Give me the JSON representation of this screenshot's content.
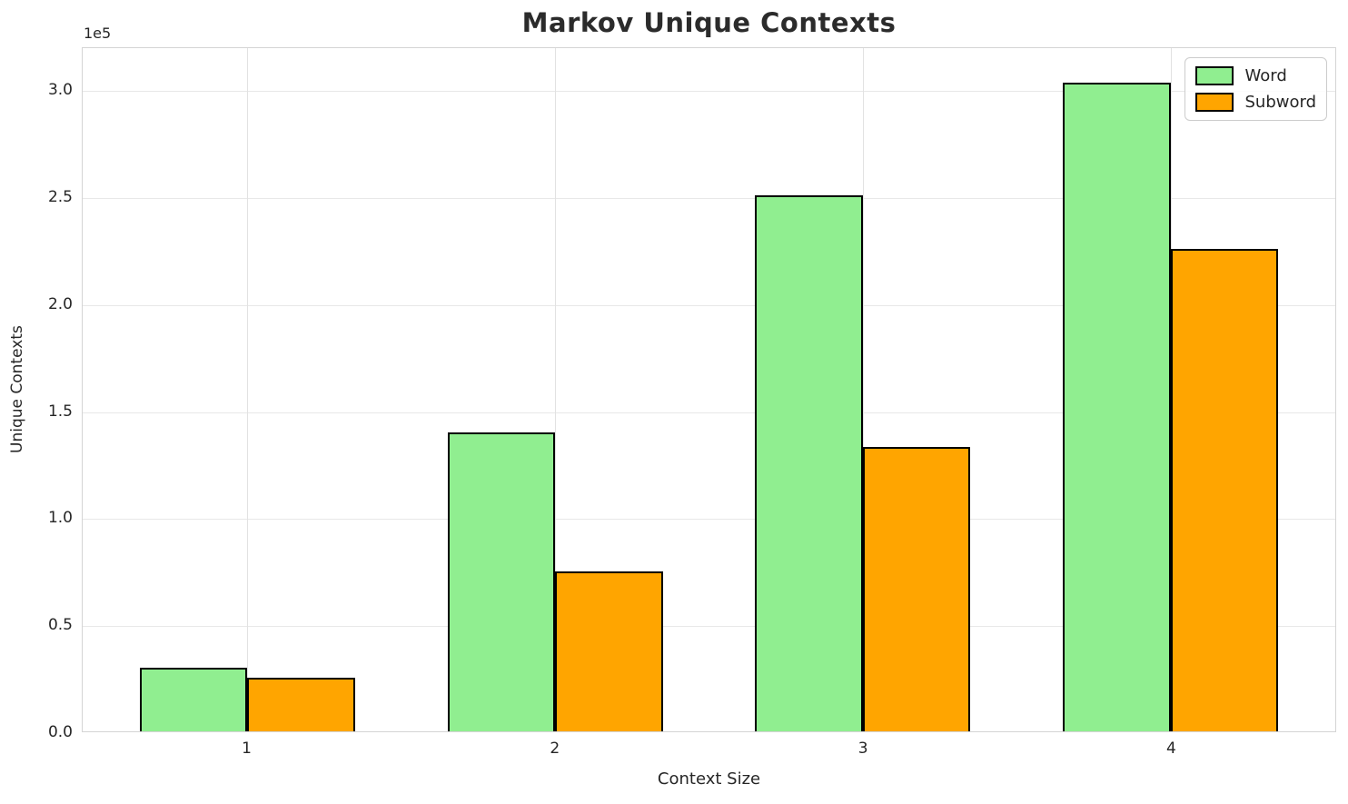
{
  "title": "Markov Unique Contexts",
  "axis_offset_label": "1e5",
  "chart_data": {
    "type": "bar",
    "title": "Markov Unique Contexts",
    "xlabel": "Context Size",
    "ylabel": "Unique Contexts",
    "categories": [
      "1",
      "2",
      "3",
      "4"
    ],
    "series": [
      {
        "name": "Word",
        "color": "#90EE90",
        "values": [
          30000,
          140000,
          251000,
          304000
        ]
      },
      {
        "name": "Subword",
        "color": "#FFA500",
        "values": [
          25000,
          75000,
          133000,
          226000
        ]
      }
    ],
    "bar_edge_color": "#000000",
    "bar_width": 0.35,
    "xlim": [
      -0.535,
      3.535
    ],
    "ylim": [
      0,
      320000
    ],
    "ytick_values": [
      0,
      50000,
      100000,
      150000,
      200000,
      250000,
      300000
    ],
    "ytick_labels": [
      "0.0",
      "0.5",
      "1.0",
      "1.5",
      "2.0",
      "2.5",
      "3.0"
    ],
    "y_offset_text": "1e5",
    "grid": true,
    "grid_color": "#e8e8e8",
    "legend_position": "upper right",
    "legend_entries": [
      "Word",
      "Subword"
    ]
  }
}
